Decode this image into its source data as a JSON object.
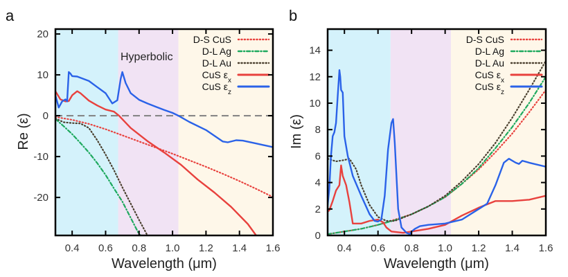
{
  "figure": {
    "regions": [
      {
        "name": "region-1",
        "x_range": [
          0.3,
          0.675
        ],
        "color": "#d4f2fb"
      },
      {
        "name": "hyperbolic",
        "x_range": [
          0.675,
          1.035
        ],
        "color": "#f1e3f4"
      },
      {
        "name": "region-3",
        "x_range": [
          1.035,
          1.6
        ],
        "color": "#fef7e9"
      }
    ],
    "legend": [
      {
        "label": "D-S CuS",
        "sub": "",
        "color": "#e8413d",
        "style": "dotted"
      },
      {
        "label": "D-L Ag",
        "sub": "",
        "color": "#1ea95e",
        "style": "dashdot"
      },
      {
        "label": "D-L Au",
        "sub": "",
        "color": "#4a3f2e",
        "style": "dotted"
      },
      {
        "label": "CuS ε",
        "sub": "x",
        "color": "#e8413d",
        "style": "solid"
      },
      {
        "label": "CuS ε",
        "sub": "z",
        "color": "#2a62e8",
        "style": "solid"
      }
    ]
  },
  "chart_data": [
    {
      "type": "line",
      "panel_label": "a",
      "title": "",
      "xlabel": "Wavelength (μm)",
      "ylabel": "Re (ε)",
      "xlim": [
        0.3,
        1.6
      ],
      "ylim": [
        -29.3,
        21.2
      ],
      "xticks": [
        0.4,
        0.6,
        0.8,
        1.0,
        1.2,
        1.4,
        1.6
      ],
      "xtick_labels": [
        "0.4",
        "0.6",
        "0.8",
        "1.0",
        "1.2",
        "1.4",
        "1.6"
      ],
      "yticks": [
        20,
        10,
        0,
        -10,
        -20
      ],
      "ytick_labels": [
        "20",
        "10",
        "0",
        "-10",
        "-20"
      ],
      "annotation": "Hyperbolic",
      "zero_line": true,
      "legend_position": "top-right",
      "series": [
        {
          "name": "D-S CuS",
          "x": [
            0.3,
            0.4,
            0.5,
            0.6,
            0.7,
            0.8,
            0.9,
            1.0,
            1.1,
            1.2,
            1.3,
            1.4,
            1.5,
            1.6
          ],
          "y": [
            -0.3,
            -1.0,
            -2.0,
            -3.3,
            -4.8,
            -6.3,
            -7.8,
            -9.3,
            -10.9,
            -12.5,
            -14.2,
            -16.0,
            -17.9,
            -19.9
          ]
        },
        {
          "name": "D-L Ag",
          "x": [
            0.3,
            0.35,
            0.4,
            0.45,
            0.5,
            0.55,
            0.6,
            0.65,
            0.7,
            0.75,
            0.8,
            0.81
          ],
          "y": [
            -0.8,
            -2.6,
            -4.5,
            -6.7,
            -9.0,
            -11.6,
            -14.5,
            -17.8,
            -21.0,
            -25.0,
            -29.0,
            -29.3
          ]
        },
        {
          "name": "D-L Au",
          "x": [
            0.3,
            0.35,
            0.4,
            0.45,
            0.5,
            0.55,
            0.6,
            0.65,
            0.7,
            0.75,
            0.8,
            0.85
          ],
          "y": [
            -0.7,
            -1.6,
            -1.8,
            -1.9,
            -3.0,
            -6.0,
            -9.5,
            -13.3,
            -17.5,
            -21.5,
            -25.5,
            -29.3
          ]
        },
        {
          "name": "CuS εx",
          "x": [
            0.3,
            0.33,
            0.36,
            0.38,
            0.4,
            0.43,
            0.45,
            0.5,
            0.55,
            0.6,
            0.65,
            0.68,
            0.75,
            0.85,
            0.95,
            1.05,
            1.15,
            1.25,
            1.35,
            1.45,
            1.5
          ],
          "y": [
            6.0,
            4.0,
            3.5,
            3.6,
            5.0,
            6.0,
            5.5,
            3.7,
            2.5,
            1.5,
            1.0,
            0.0,
            -3.0,
            -6.2,
            -9.0,
            -12.0,
            -15.6,
            -18.8,
            -22.3,
            -26.5,
            -29.3
          ]
        },
        {
          "name": "CuS εz",
          "x": [
            0.3,
            0.32,
            0.34,
            0.36,
            0.37,
            0.38,
            0.39,
            0.4,
            0.43,
            0.5,
            0.55,
            0.6,
            0.64,
            0.67,
            0.69,
            0.7,
            0.72,
            0.75,
            0.8,
            0.85,
            0.9,
            0.95,
            1.0,
            1.035,
            1.1,
            1.2,
            1.3,
            1.33,
            1.38,
            1.42,
            1.5,
            1.6
          ],
          "y": [
            5.0,
            2.0,
            3.5,
            4.0,
            3.5,
            10.7,
            10.3,
            9.7,
            9.6,
            8.5,
            7.0,
            5.5,
            3.0,
            3.8,
            9.0,
            10.7,
            8.0,
            5.5,
            3.9,
            3.0,
            2.2,
            1.4,
            0.7,
            0.0,
            -1.5,
            -3.5,
            -6.3,
            -6.5,
            -6.0,
            -6.1,
            -6.8,
            -7.7
          ]
        }
      ]
    },
    {
      "type": "line",
      "panel_label": "b",
      "title": "",
      "xlabel": "Wavelength (μm)",
      "ylabel": "Im (ε)",
      "xlim": [
        0.3,
        1.6
      ],
      "ylim": [
        0,
        15.6
      ],
      "xticks": [
        0.4,
        0.6,
        0.8,
        1.0,
        1.2,
        1.4,
        1.6
      ],
      "xtick_labels": [
        "0.4",
        "0.6",
        "0.8",
        "1.0",
        "1.2",
        "1.4",
        "1.6"
      ],
      "yticks": [
        0,
        2,
        4,
        6,
        8,
        10,
        12,
        14
      ],
      "ytick_labels": [
        "0",
        "2",
        "4",
        "6",
        "8",
        "10",
        "12",
        "14"
      ],
      "legend_position": "top-right",
      "series": [
        {
          "name": "D-S CuS",
          "x": [
            0.3,
            0.4,
            0.5,
            0.6,
            0.7,
            0.8,
            0.9,
            1.0,
            1.1,
            1.2,
            1.3,
            1.4,
            1.5,
            1.6
          ],
          "y": [
            0.1,
            0.3,
            0.5,
            0.8,
            1.2,
            1.6,
            2.2,
            2.9,
            3.9,
            5.0,
            6.3,
            7.7,
            9.3,
            11.0
          ]
        },
        {
          "name": "D-L Ag",
          "x": [
            0.3,
            0.4,
            0.5,
            0.6,
            0.7,
            0.8,
            0.9,
            1.0,
            1.1,
            1.2,
            1.3,
            1.4,
            1.5,
            1.6
          ],
          "y": [
            0.1,
            0.3,
            0.5,
            0.8,
            1.15,
            1.6,
            2.2,
            2.9,
            3.9,
            5.1,
            6.6,
            8.2,
            10.0,
            12.0
          ]
        },
        {
          "name": "D-L Au",
          "x": [
            0.3,
            0.35,
            0.4,
            0.43,
            0.47,
            0.5,
            0.55,
            0.6,
            0.65,
            0.7,
            0.8,
            0.9,
            1.0,
            1.1,
            1.2,
            1.3,
            1.4,
            1.5,
            1.6
          ],
          "y": [
            5.8,
            5.6,
            5.7,
            5.8,
            5.0,
            3.8,
            2.3,
            1.4,
            1.1,
            1.1,
            1.6,
            2.2,
            3.0,
            4.1,
            5.4,
            7.0,
            8.9,
            11.0,
            13.2
          ]
        },
        {
          "name": "CuS εx",
          "x": [
            0.3,
            0.31,
            0.33,
            0.35,
            0.37,
            0.38,
            0.39,
            0.41,
            0.43,
            0.45,
            0.5,
            0.55,
            0.6,
            0.63,
            0.65,
            0.68,
            0.75,
            0.8,
            0.9,
            1.0,
            1.1,
            1.2,
            1.3,
            1.4,
            1.5,
            1.6
          ],
          "y": [
            1.8,
            1.9,
            2.6,
            3.4,
            3.8,
            5.3,
            4.5,
            3.8,
            2.5,
            0.9,
            0.9,
            1.1,
            1.2,
            1.0,
            0.6,
            0.3,
            0.2,
            0.3,
            0.5,
            0.8,
            1.5,
            2.1,
            2.6,
            2.6,
            2.7,
            3.0
          ]
        },
        {
          "name": "CuS εz",
          "x": [
            0.3,
            0.31,
            0.32,
            0.33,
            0.34,
            0.35,
            0.36,
            0.37,
            0.375,
            0.38,
            0.39,
            0.4,
            0.42,
            0.45,
            0.5,
            0.55,
            0.58,
            0.6,
            0.62,
            0.64,
            0.66,
            0.68,
            0.69,
            0.7,
            0.72,
            0.74,
            0.77,
            0.79,
            0.8,
            0.82,
            0.85,
            0.9,
            1.0,
            1.1,
            1.2,
            1.25,
            1.3,
            1.35,
            1.38,
            1.42,
            1.44,
            1.46,
            1.5,
            1.6
          ],
          "y": [
            2.3,
            3.5,
            6.0,
            7.5,
            7.8,
            8.5,
            10.5,
            12.5,
            12.0,
            11.0,
            10.8,
            7.5,
            6.0,
            4.5,
            3.0,
            1.6,
            1.1,
            1.05,
            1.2,
            3.0,
            6.5,
            8.5,
            8.8,
            7.0,
            2.0,
            0.6,
            0.2,
            0.1,
            0.3,
            0.5,
            0.7,
            0.8,
            0.9,
            1.2,
            2.0,
            2.4,
            3.8,
            5.5,
            5.8,
            5.5,
            5.4,
            5.65,
            5.5,
            5.2
          ]
        }
      ]
    }
  ]
}
